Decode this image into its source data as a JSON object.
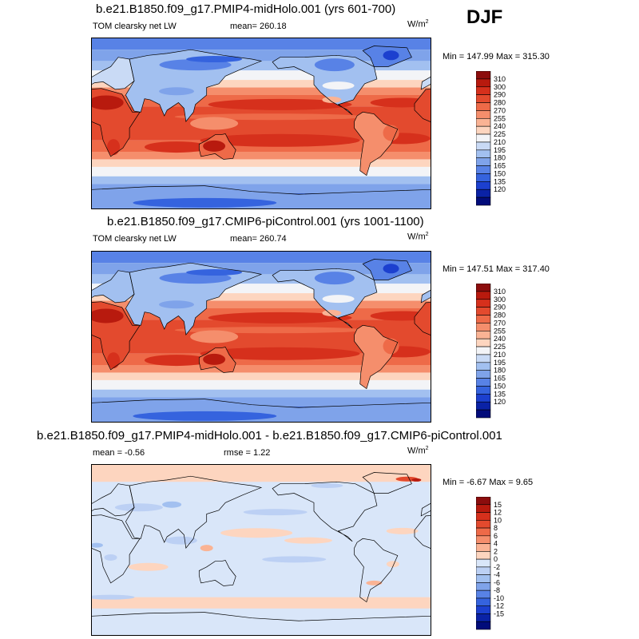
{
  "season": "DJF",
  "panels": [
    {
      "title": "b.e21.B1850.f09_g17.PMIP4-midHolo.001 (yrs 601-700)",
      "variable": "TOM clearsky net LW",
      "stat1": "mean= 260.18",
      "stat2": "",
      "units_base": "W/m",
      "units_exp": "2",
      "minmax": "Min = 147.99 Max = 315.30",
      "field": "full",
      "colorbar": "abs"
    },
    {
      "title": "b.e21.B1850.f09_g17.CMIP6-piControl.001 (yrs 1001-1100)",
      "variable": "TOM clearsky net LW",
      "stat1": "mean= 260.74",
      "stat2": "",
      "units_base": "W/m",
      "units_exp": "2",
      "minmax": "Min = 147.51 Max = 317.40",
      "field": "full",
      "colorbar": "abs"
    },
    {
      "title": "b.e21.B1850.f09_g17.PMIP4-midHolo.001 - b.e21.B1850.f09_g17.CMIP6-piControl.001",
      "variable": "",
      "stat1": "mean =  -0.56",
      "stat2": "rmse =   1.22",
      "units_base": "W/m",
      "units_exp": "2",
      "minmax": "Min =  -6.67 Max =   9.65",
      "field": "diff",
      "colorbar": "diff"
    }
  ],
  "chart_data": [
    {
      "type": "heatmap",
      "title": "b.e21.B1850.f09_g17.PMIP4-midHolo.001 (yrs 601-700)",
      "variable": "TOM clearsky net LW",
      "units": "W/m2",
      "mean": 260.18,
      "min": 147.99,
      "max": 315.3,
      "colorbar_labels": [
        "310",
        "300",
        "290",
        "280",
        "270",
        "255",
        "240",
        "225",
        "210",
        "195",
        "180",
        "165",
        "150",
        "135",
        "120"
      ],
      "colorbar_colors": [
        "#8c0d0d",
        "#b81a0e",
        "#d6301c",
        "#e34a2e",
        "#ee6a48",
        "#f58e6c",
        "#fab394",
        "#fdd5bf",
        "#f3f4f7",
        "#c9daf5",
        "#a2c0f0",
        "#7fa3ea",
        "#5882e6",
        "#3563de",
        "#1c40cf",
        "#0a22a6",
        "#020c7a"
      ]
    },
    {
      "type": "heatmap",
      "title": "b.e21.B1850.f09_g17.CMIP6-piControl.001 (yrs 1001-1100)",
      "variable": "TOM clearsky net LW",
      "units": "W/m2",
      "mean": 260.74,
      "min": 147.51,
      "max": 317.4,
      "colorbar_labels": [
        "310",
        "300",
        "290",
        "280",
        "270",
        "255",
        "240",
        "225",
        "210",
        "195",
        "180",
        "165",
        "150",
        "135",
        "120"
      ],
      "colorbar_colors": [
        "#8c0d0d",
        "#b81a0e",
        "#d6301c",
        "#e34a2e",
        "#ee6a48",
        "#f58e6c",
        "#fab394",
        "#fdd5bf",
        "#f3f4f7",
        "#c9daf5",
        "#a2c0f0",
        "#7fa3ea",
        "#5882e6",
        "#3563de",
        "#1c40cf",
        "#0a22a6",
        "#020c7a"
      ]
    },
    {
      "type": "heatmap",
      "title": "b.e21.B1850.f09_g17.PMIP4-midHolo.001 - b.e21.B1850.f09_g17.CMIP6-piControl.001",
      "units": "W/m2",
      "mean": -0.56,
      "rmse": 1.22,
      "min": -6.67,
      "max": 9.65,
      "colorbar_labels": [
        "15",
        "12",
        "10",
        "8",
        "6",
        "4",
        "2",
        "0",
        "-2",
        "-4",
        "-6",
        "-8",
        "-10",
        "-12",
        "-15"
      ],
      "colorbar_colors": [
        "#8c0d0d",
        "#b81a0e",
        "#d6301c",
        "#e34a2e",
        "#ee6a48",
        "#f58e6c",
        "#fab394",
        "#fdd5bf",
        "#d9e6f9",
        "#bcd0f4",
        "#a2c0f0",
        "#7fa3ea",
        "#5882e6",
        "#3563de",
        "#1c40cf",
        "#0a22a6",
        "#020c7a"
      ]
    }
  ]
}
